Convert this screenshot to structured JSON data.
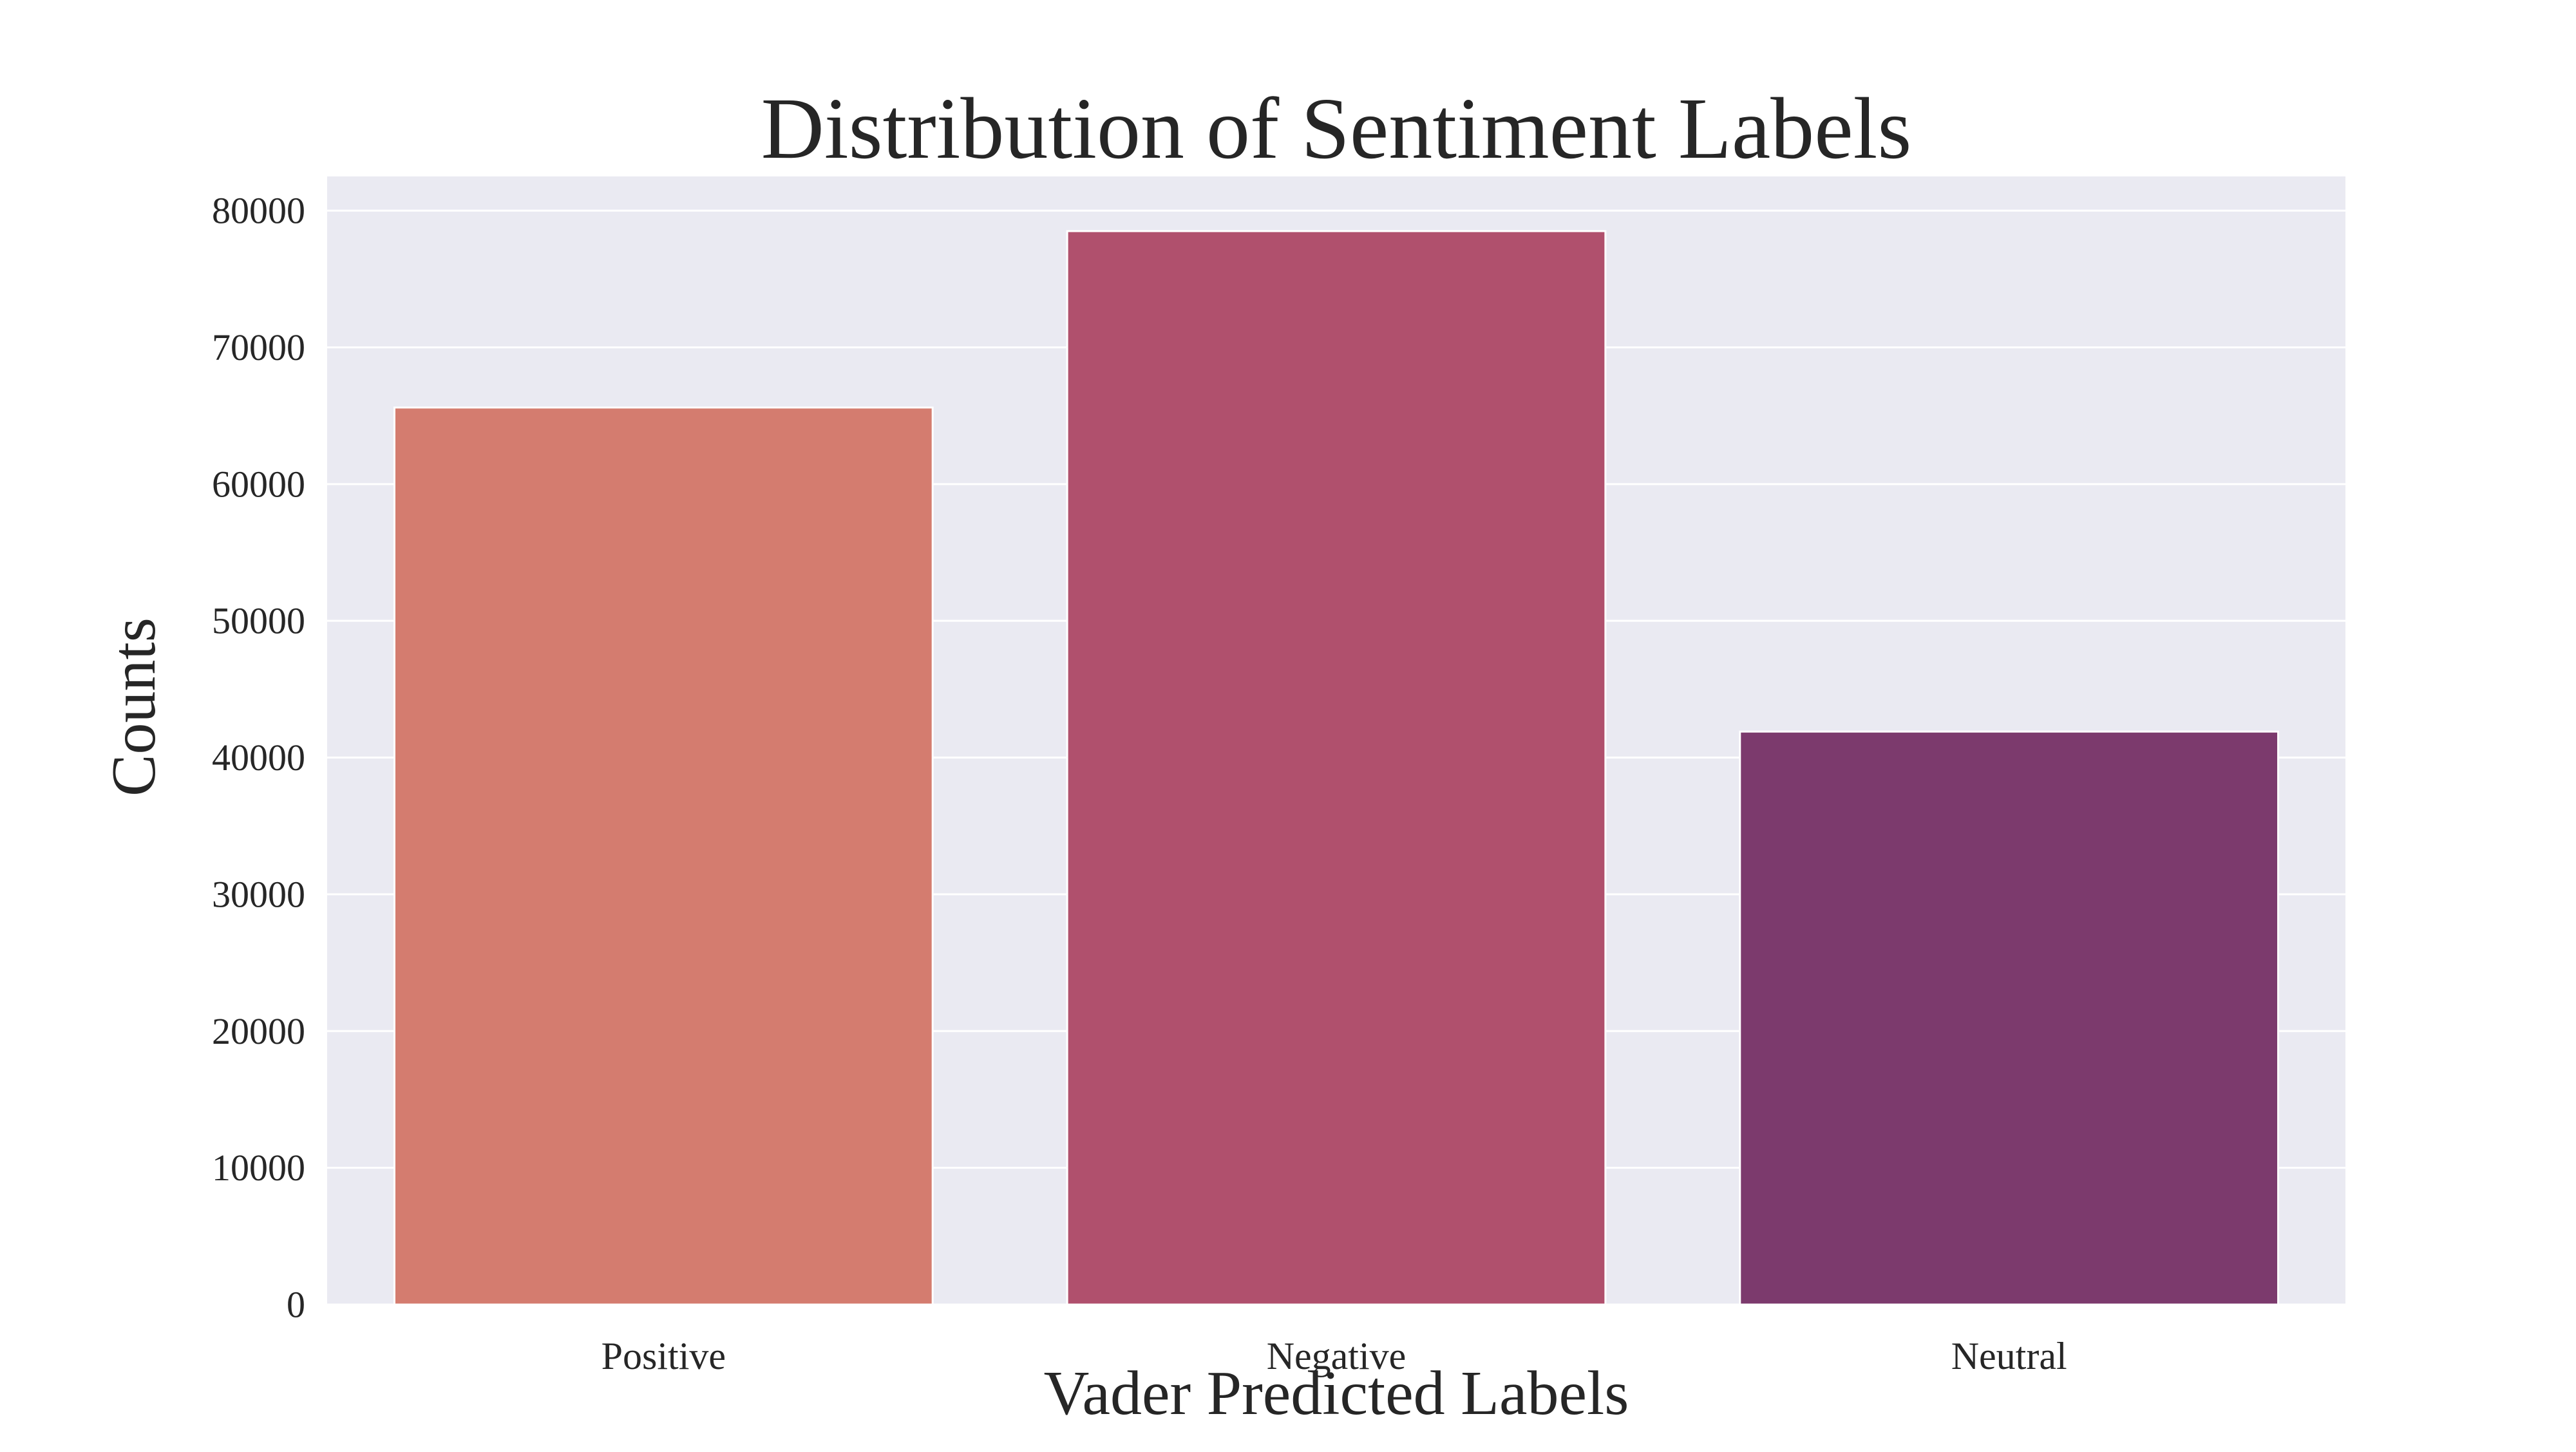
{
  "chart_data": {
    "type": "bar",
    "title": "Distribution of Sentiment Labels",
    "xlabel": "Vader Predicted Labels",
    "ylabel": "Counts",
    "categories": [
      "Positive",
      "Negative",
      "Neutral"
    ],
    "values": [
      65600,
      78500,
      41900
    ],
    "ylim": [
      0,
      82500
    ],
    "yticks": [
      "0",
      "10000",
      "20000",
      "30000",
      "40000",
      "50000",
      "60000",
      "70000",
      "80000"
    ],
    "grid": true,
    "legend": "none"
  },
  "colors": {
    "background": "#ffffff",
    "plot_background": "#eaeaf2",
    "grid": "#ffffff",
    "text": "#262626",
    "bars": [
      "#d47c6f",
      "#b0506d",
      "#7c3a6d"
    ]
  }
}
